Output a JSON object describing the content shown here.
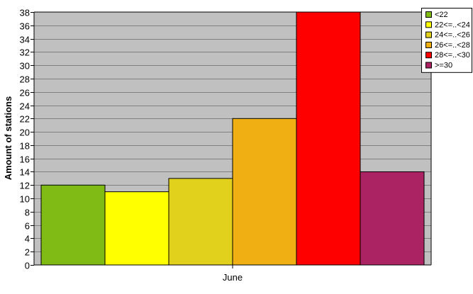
{
  "chart_data": {
    "type": "bar",
    "title": "",
    "xlabel": "",
    "ylabel": "Amount of stations",
    "categories": [
      "June"
    ],
    "ylim": [
      0,
      38
    ],
    "y_ticks": [
      0,
      2,
      4,
      6,
      8,
      10,
      12,
      14,
      16,
      18,
      20,
      22,
      24,
      26,
      28,
      30,
      32,
      34,
      36,
      38
    ],
    "grid": true,
    "legend_position": "top-right",
    "background_color": "#c0c0c0",
    "series": [
      {
        "name": "<22",
        "values": [
          12
        ],
        "color": "#7fba15"
      },
      {
        "name": "22<=..<24",
        "values": [
          11
        ],
        "color": "#ffff00"
      },
      {
        "name": "24<=..<26",
        "values": [
          13
        ],
        "color": "#e2d11c"
      },
      {
        "name": "26<=..<28",
        "values": [
          22
        ],
        "color": "#f0b014"
      },
      {
        "name": "28<=..<30",
        "values": [
          38
        ],
        "color": "#ff0000"
      },
      {
        "name": ">=30",
        "values": [
          14
        ],
        "color": "#ac2364"
      }
    ]
  }
}
